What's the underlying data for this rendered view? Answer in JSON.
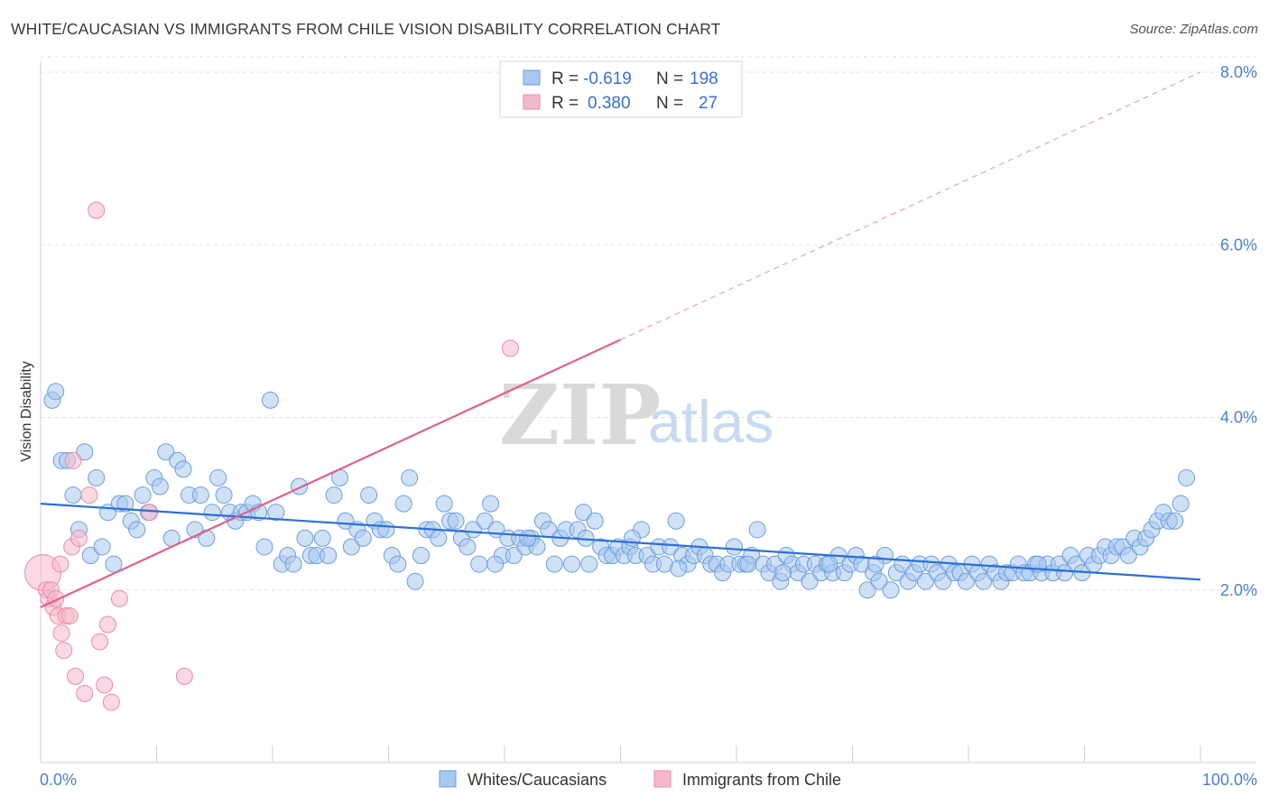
{
  "title": "WHITE/CAUCASIAN VS IMMIGRANTS FROM CHILE VISION DISABILITY CORRELATION CHART",
  "source": "Source: ZipAtlas.com",
  "watermark": {
    "zip": "ZIP",
    "atlas": "atlas"
  },
  "legend": {
    "rows": [
      {
        "r_label": "R =",
        "r_value": "-0.619",
        "n_label": "N =",
        "n_value": "198",
        "color": "#a9c8ef"
      },
      {
        "r_label": "R =",
        "r_value": "0.380",
        "n_label": "N =",
        "n_value": "27",
        "color": "#f6b9cb"
      }
    ]
  },
  "bottom_legend": [
    "Whites/Caucasians",
    "Immigrants from Chile"
  ],
  "chart_data": {
    "type": "scatter",
    "title": "WHITE/CAUCASIAN VS IMMIGRANTS FROM CHILE VISION DISABILITY CORRELATION CHART",
    "xlabel": "",
    "ylabel": "Vision Disability",
    "xlim": [
      0,
      100
    ],
    "ylim": [
      0,
      8.0
    ],
    "x_tick_labels": [
      "0.0%",
      "100.0%"
    ],
    "y_ticks": [
      2.0,
      4.0,
      6.0,
      8.0
    ],
    "y_tick_labels": [
      "2.0%",
      "4.0%",
      "6.0%",
      "8.0%"
    ],
    "grid": true,
    "legend_position": "top-center",
    "series": [
      {
        "name": "Whites/Caucasians",
        "color": "#a9c8ef",
        "edge": "#6a9de0",
        "trend": {
          "x0": 0,
          "y0": 3.0,
          "x1": 100,
          "y1": 2.12,
          "color": "#2b6fd6"
        },
        "points": [
          [
            1.0,
            4.2
          ],
          [
            1.3,
            4.3
          ],
          [
            1.8,
            3.5
          ],
          [
            2.3,
            3.5
          ],
          [
            2.8,
            3.1
          ],
          [
            3.3,
            2.7
          ],
          [
            3.8,
            3.6
          ],
          [
            4.3,
            2.4
          ],
          [
            4.8,
            3.3
          ],
          [
            5.3,
            2.5
          ],
          [
            5.8,
            2.9
          ],
          [
            6.3,
            2.3
          ],
          [
            6.8,
            3.0
          ],
          [
            7.3,
            3.0
          ],
          [
            7.8,
            2.8
          ],
          [
            8.3,
            2.7
          ],
          [
            8.8,
            3.1
          ],
          [
            9.3,
            2.9
          ],
          [
            9.8,
            3.3
          ],
          [
            10.3,
            3.2
          ],
          [
            10.8,
            3.6
          ],
          [
            11.3,
            2.6
          ],
          [
            11.8,
            3.5
          ],
          [
            12.3,
            3.4
          ],
          [
            12.8,
            3.1
          ],
          [
            13.3,
            2.7
          ],
          [
            13.8,
            3.1
          ],
          [
            14.3,
            2.6
          ],
          [
            14.8,
            2.9
          ],
          [
            15.3,
            3.3
          ],
          [
            15.8,
            3.1
          ],
          [
            16.3,
            2.9
          ],
          [
            16.8,
            2.8
          ],
          [
            17.3,
            2.9
          ],
          [
            17.8,
            2.9
          ],
          [
            18.3,
            3.0
          ],
          [
            18.8,
            2.9
          ],
          [
            19.3,
            2.5
          ],
          [
            19.8,
            4.2
          ],
          [
            20.3,
            2.9
          ],
          [
            20.8,
            2.3
          ],
          [
            21.3,
            2.4
          ],
          [
            21.8,
            2.3
          ],
          [
            22.3,
            3.2
          ],
          [
            22.8,
            2.6
          ],
          [
            23.3,
            2.4
          ],
          [
            23.8,
            2.4
          ],
          [
            24.3,
            2.6
          ],
          [
            24.8,
            2.4
          ],
          [
            25.3,
            3.1
          ],
          [
            25.8,
            3.3
          ],
          [
            26.3,
            2.8
          ],
          [
            26.8,
            2.5
          ],
          [
            27.3,
            2.7
          ],
          [
            27.8,
            2.6
          ],
          [
            28.3,
            3.1
          ],
          [
            28.8,
            2.8
          ],
          [
            29.3,
            2.7
          ],
          [
            29.8,
            2.7
          ],
          [
            30.3,
            2.4
          ],
          [
            30.8,
            2.3
          ],
          [
            31.3,
            3.0
          ],
          [
            31.8,
            3.3
          ],
          [
            32.3,
            2.1
          ],
          [
            32.8,
            2.4
          ],
          [
            33.3,
            2.7
          ],
          [
            33.8,
            2.7
          ],
          [
            34.3,
            2.6
          ],
          [
            34.8,
            3.0
          ],
          [
            35.3,
            2.8
          ],
          [
            35.8,
            2.8
          ],
          [
            36.3,
            2.6
          ],
          [
            36.8,
            2.5
          ],
          [
            37.3,
            2.7
          ],
          [
            37.8,
            2.3
          ],
          [
            38.3,
            2.8
          ],
          [
            38.8,
            3.0
          ],
          [
            39.3,
            2.7
          ],
          [
            39.8,
            2.4
          ],
          [
            40.3,
            2.6
          ],
          [
            40.8,
            2.4
          ],
          [
            41.3,
            2.6
          ],
          [
            41.8,
            2.5
          ],
          [
            42.3,
            2.6
          ],
          [
            42.8,
            2.5
          ],
          [
            43.3,
            2.8
          ],
          [
            43.8,
            2.7
          ],
          [
            44.3,
            2.3
          ],
          [
            44.8,
            2.6
          ],
          [
            45.3,
            2.7
          ],
          [
            45.8,
            2.3
          ],
          [
            46.3,
            2.7
          ],
          [
            46.8,
            2.9
          ],
          [
            47.3,
            2.3
          ],
          [
            47.8,
            2.8
          ],
          [
            48.3,
            2.5
          ],
          [
            48.8,
            2.4
          ],
          [
            49.3,
            2.4
          ],
          [
            49.8,
            2.5
          ],
          [
            50.3,
            2.4
          ],
          [
            50.8,
            2.5
          ],
          [
            51.3,
            2.4
          ],
          [
            51.8,
            2.7
          ],
          [
            52.3,
            2.4
          ],
          [
            52.8,
            2.3
          ],
          [
            53.3,
            2.5
          ],
          [
            53.8,
            2.3
          ],
          [
            54.3,
            2.5
          ],
          [
            54.8,
            2.8
          ],
          [
            55.3,
            2.4
          ],
          [
            55.8,
            2.3
          ],
          [
            56.3,
            2.4
          ],
          [
            56.8,
            2.5
          ],
          [
            57.3,
            2.4
          ],
          [
            57.8,
            2.3
          ],
          [
            58.3,
            2.3
          ],
          [
            58.8,
            2.2
          ],
          [
            59.3,
            2.3
          ],
          [
            59.8,
            2.5
          ],
          [
            60.3,
            2.3
          ],
          [
            60.8,
            2.3
          ],
          [
            61.3,
            2.4
          ],
          [
            61.8,
            2.7
          ],
          [
            62.3,
            2.3
          ],
          [
            62.8,
            2.2
          ],
          [
            63.3,
            2.3
          ],
          [
            63.8,
            2.1
          ],
          [
            64.3,
            2.4
          ],
          [
            64.8,
            2.3
          ],
          [
            65.3,
            2.2
          ],
          [
            65.8,
            2.3
          ],
          [
            66.3,
            2.1
          ],
          [
            66.8,
            2.3
          ],
          [
            67.3,
            2.2
          ],
          [
            67.8,
            2.3
          ],
          [
            68.3,
            2.2
          ],
          [
            68.8,
            2.4
          ],
          [
            69.3,
            2.2
          ],
          [
            69.8,
            2.3
          ],
          [
            70.3,
            2.4
          ],
          [
            70.8,
            2.3
          ],
          [
            71.3,
            2.0
          ],
          [
            71.8,
            2.2
          ],
          [
            72.3,
            2.1
          ],
          [
            72.8,
            2.4
          ],
          [
            73.3,
            2.0
          ],
          [
            73.8,
            2.2
          ],
          [
            74.3,
            2.3
          ],
          [
            74.8,
            2.1
          ],
          [
            75.3,
            2.2
          ],
          [
            75.8,
            2.3
          ],
          [
            76.3,
            2.1
          ],
          [
            76.8,
            2.3
          ],
          [
            77.3,
            2.2
          ],
          [
            77.8,
            2.1
          ],
          [
            78.3,
            2.3
          ],
          [
            78.8,
            2.2
          ],
          [
            79.3,
            2.2
          ],
          [
            79.8,
            2.1
          ],
          [
            80.3,
            2.3
          ],
          [
            80.8,
            2.2
          ],
          [
            81.3,
            2.1
          ],
          [
            81.8,
            2.3
          ],
          [
            82.3,
            2.2
          ],
          [
            82.8,
            2.1
          ],
          [
            83.3,
            2.2
          ],
          [
            83.8,
            2.2
          ],
          [
            84.3,
            2.3
          ],
          [
            84.8,
            2.2
          ],
          [
            85.3,
            2.2
          ],
          [
            85.8,
            2.3
          ],
          [
            86.3,
            2.2
          ],
          [
            86.8,
            2.3
          ],
          [
            87.3,
            2.2
          ],
          [
            87.8,
            2.3
          ],
          [
            88.3,
            2.2
          ],
          [
            88.8,
            2.4
          ],
          [
            89.3,
            2.3
          ],
          [
            89.8,
            2.2
          ],
          [
            90.3,
            2.4
          ],
          [
            90.8,
            2.3
          ],
          [
            91.3,
            2.4
          ],
          [
            91.8,
            2.5
          ],
          [
            92.3,
            2.4
          ],
          [
            92.8,
            2.5
          ],
          [
            93.3,
            2.5
          ],
          [
            93.8,
            2.4
          ],
          [
            94.3,
            2.6
          ],
          [
            94.8,
            2.5
          ],
          [
            95.3,
            2.6
          ],
          [
            95.8,
            2.7
          ],
          [
            96.3,
            2.8
          ],
          [
            96.8,
            2.9
          ],
          [
            97.3,
            2.8
          ],
          [
            97.8,
            2.8
          ],
          [
            98.3,
            3.0
          ],
          [
            98.8,
            3.3
          ],
          [
            39.2,
            2.3
          ],
          [
            55.0,
            2.25
          ],
          [
            61.0,
            2.3
          ],
          [
            72.0,
            2.3
          ],
          [
            86.0,
            2.3
          ],
          [
            64.0,
            2.2
          ],
          [
            68.0,
            2.3
          ],
          [
            51.0,
            2.6
          ],
          [
            47.0,
            2.6
          ],
          [
            42.0,
            2.6
          ]
        ]
      },
      {
        "name": "Immigrants from Chile",
        "color": "#f6b9cb",
        "edge": "#e88aa6",
        "trend": {
          "x0": 0,
          "y0": 1.8,
          "x1": 50,
          "y1": 4.9,
          "color": "#e0608a",
          "dashed_to": {
            "x": 100,
            "y": 8.0
          }
        },
        "points": [
          [
            0.2,
            2.2
          ],
          [
            0.5,
            2.0
          ],
          [
            0.7,
            1.9
          ],
          [
            0.9,
            2.0
          ],
          [
            1.1,
            1.8
          ],
          [
            1.3,
            1.9
          ],
          [
            1.5,
            1.7
          ],
          [
            1.7,
            2.3
          ],
          [
            1.8,
            1.5
          ],
          [
            2.0,
            1.3
          ],
          [
            2.2,
            1.7
          ],
          [
            2.5,
            1.7
          ],
          [
            2.7,
            2.5
          ],
          [
            2.8,
            3.5
          ],
          [
            3.0,
            1.0
          ],
          [
            3.3,
            2.6
          ],
          [
            3.8,
            0.8
          ],
          [
            4.2,
            3.1
          ],
          [
            4.8,
            6.4
          ],
          [
            5.1,
            1.4
          ],
          [
            5.5,
            0.9
          ],
          [
            5.8,
            1.6
          ],
          [
            6.1,
            0.7
          ],
          [
            6.8,
            1.9
          ],
          [
            9.4,
            2.9
          ],
          [
            12.4,
            1.0
          ],
          [
            40.5,
            4.8
          ]
        ]
      }
    ]
  }
}
